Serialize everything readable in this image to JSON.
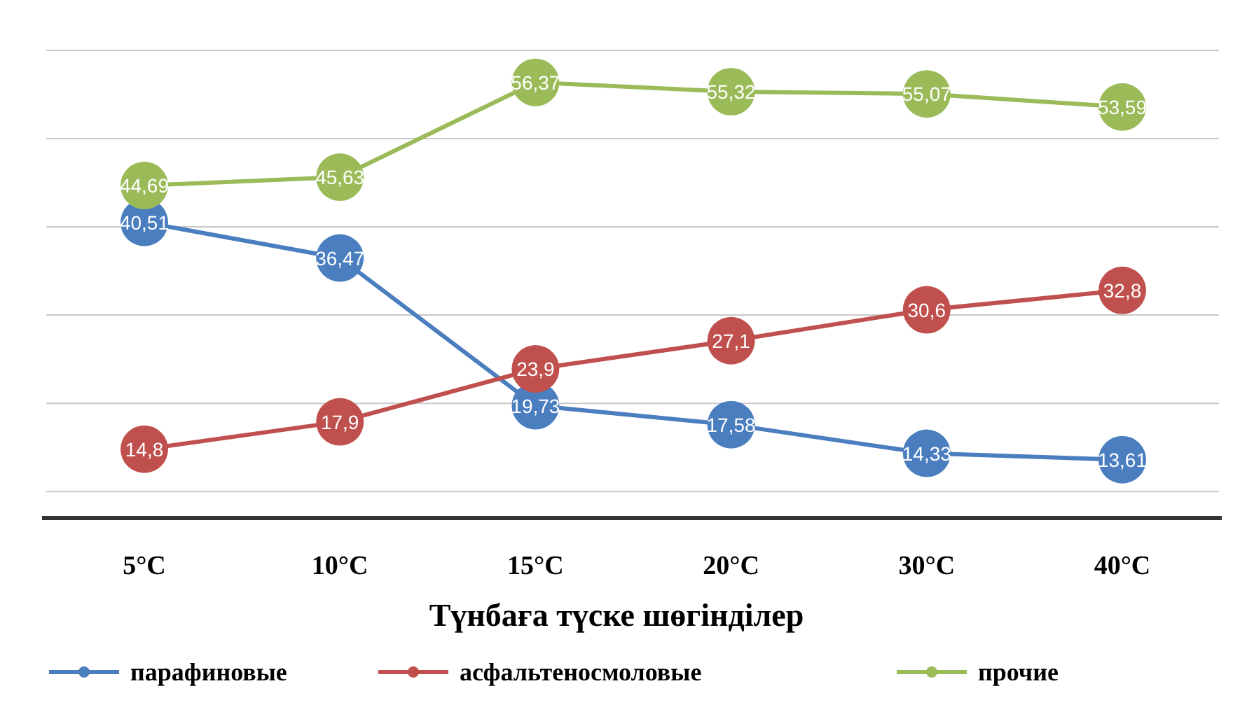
{
  "chart_data": {
    "type": "line",
    "xlabel": "Түнбаға түске шөгінділер",
    "categories": [
      "5°C",
      "10°C",
      "15°C",
      "20°C",
      "30°C",
      "40°C"
    ],
    "series": [
      {
        "name": "парафиновые",
        "color": "#4a7ebf",
        "values": [
          40.51,
          36.47,
          19.73,
          17.58,
          14.33,
          13.61
        ],
        "value_labels": [
          "40,51",
          "36,47",
          "19,73",
          "17,58",
          "14,33",
          "13,61"
        ]
      },
      {
        "name": "асфальтеносмоловые",
        "color": "#c0504d",
        "values": [
          14.8,
          17.9,
          23.9,
          27.1,
          30.6,
          32.8
        ],
        "value_labels": [
          "14,8",
          "17,9",
          "23,9",
          "27,1",
          "30,6",
          "32,8"
        ]
      },
      {
        "name": "прочие",
        "color": "#9bbb59",
        "values": [
          44.69,
          45.63,
          56.37,
          55.32,
          55.07,
          53.59
        ],
        "value_labels": [
          "44,69",
          "45,63",
          "56,37",
          "55,32",
          "55,07",
          "53,59"
        ]
      }
    ],
    "ylim": [
      7,
      60
    ],
    "yticks": [
      {
        "value": 10,
        "label": null
      },
      {
        "value": 20,
        "label": null
      },
      {
        "value": 30,
        "label": null
      },
      {
        "value": 40,
        "label": null
      },
      {
        "value": 50,
        "label": null
      },
      {
        "value": 60,
        "label": null
      }
    ],
    "tick_labels": "x",
    "grid": "y",
    "marker": "circle",
    "line_style": "solid",
    "legend": "bottom"
  }
}
